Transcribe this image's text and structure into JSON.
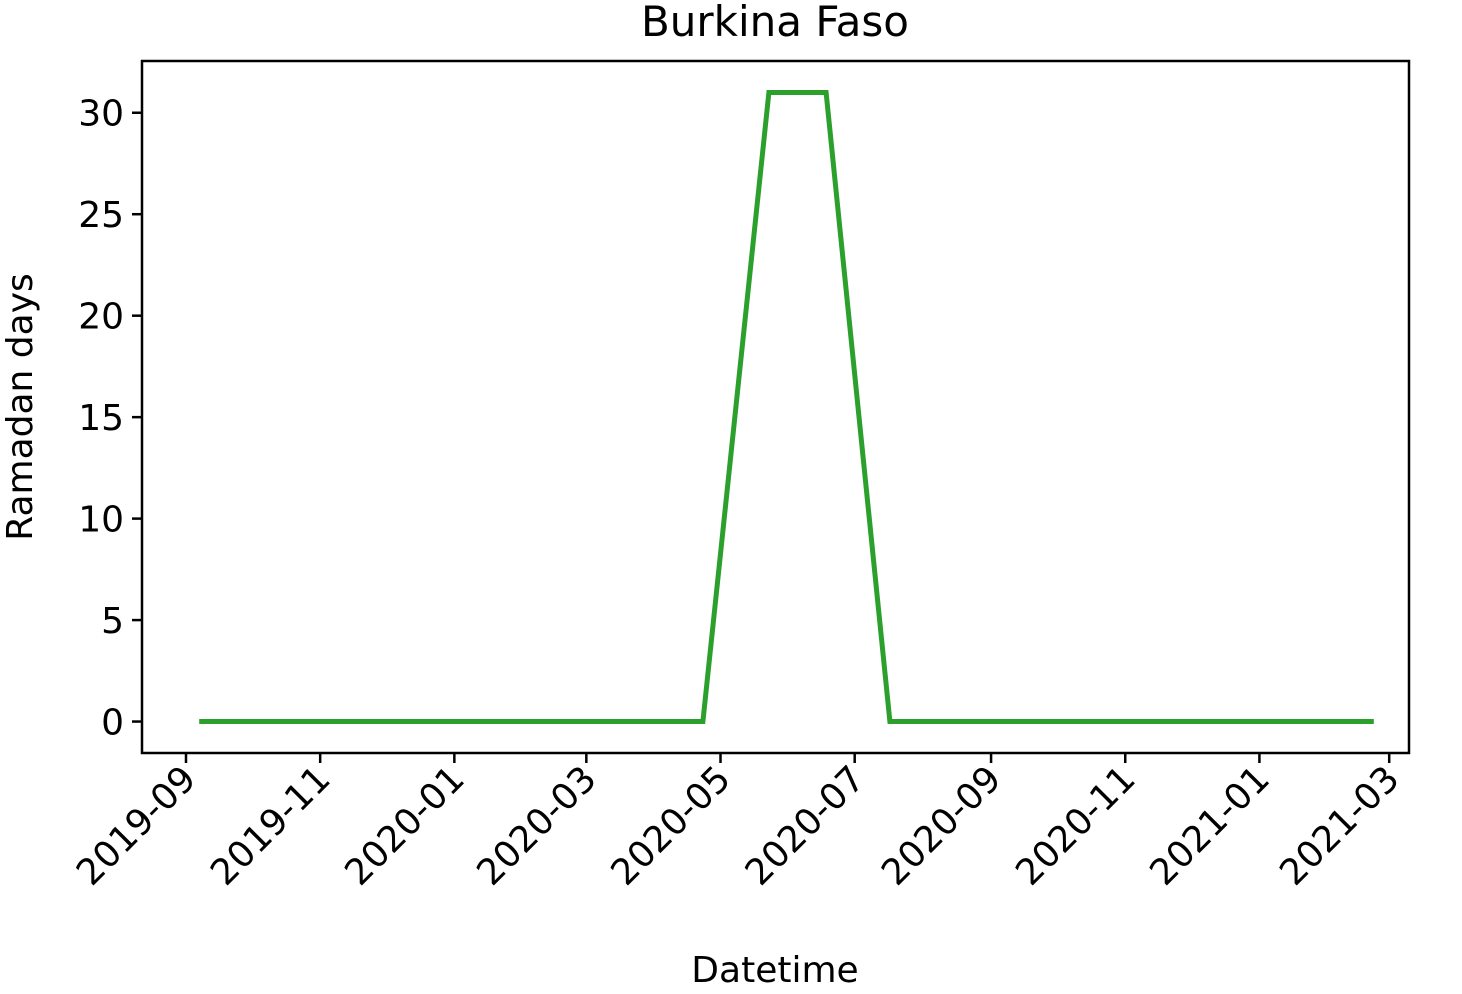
{
  "chart_data": {
    "type": "line",
    "title": "Burkina Faso",
    "xlabel": "Datetime",
    "ylabel": "Ramadan days",
    "x_tick_labels": [
      "2019-09",
      "2019-11",
      "2020-01",
      "2020-03",
      "2020-05",
      "2020-07",
      "2020-09",
      "2020-11",
      "2021-01",
      "2021-03"
    ],
    "x_ticks": [
      "2019-09-01",
      "2019-11-01",
      "2020-01-01",
      "2020-03-01",
      "2020-05-01",
      "2020-07-01",
      "2020-09-01",
      "2020-11-01",
      "2021-01-01",
      "2021-03-01"
    ],
    "y_ticks": [
      0,
      5,
      10,
      15,
      20,
      25,
      30
    ],
    "xlim": [
      "2019-08-12",
      "2021-03-10"
    ],
    "ylim": [
      -1.55,
      32.55
    ],
    "grid": false,
    "series": [
      {
        "color": "#2ca02c",
        "points": [
          {
            "x": "2019-09-07",
            "y": 0
          },
          {
            "x": "2020-04-23",
            "y": 0
          },
          {
            "x": "2020-05-23",
            "y": 31
          },
          {
            "x": "2020-06-18",
            "y": 31
          },
          {
            "x": "2020-07-17",
            "y": 0
          },
          {
            "x": "2021-02-22",
            "y": 0
          }
        ]
      }
    ]
  }
}
